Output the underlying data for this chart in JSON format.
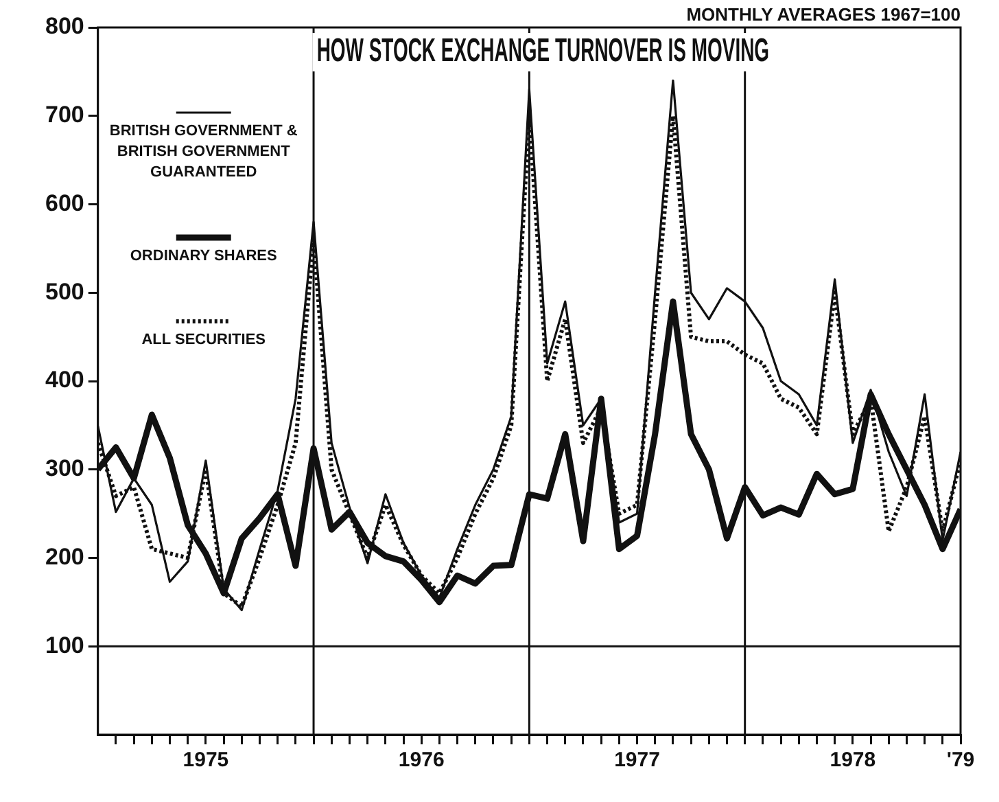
{
  "chart_data": {
    "type": "line",
    "title": "HOW STOCK EXCHANGE TURNOVER IS MOVING",
    "subtitle": "MONTHLY AVERAGES 1967=100",
    "x": [
      "1975-01",
      "1975-02",
      "1975-03",
      "1975-04",
      "1975-05",
      "1975-06",
      "1975-07",
      "1975-08",
      "1975-09",
      "1975-10",
      "1975-11",
      "1975-12",
      "1976-01",
      "1976-02",
      "1976-03",
      "1976-04",
      "1976-05",
      "1976-06",
      "1976-07",
      "1976-08",
      "1976-09",
      "1976-10",
      "1976-11",
      "1976-12",
      "1977-01",
      "1977-02",
      "1977-03",
      "1977-04",
      "1977-05",
      "1977-06",
      "1977-07",
      "1977-08",
      "1977-09",
      "1977-10",
      "1977-11",
      "1977-12",
      "1978-01",
      "1978-02",
      "1978-03",
      "1978-04",
      "1978-05",
      "1978-06",
      "1978-07",
      "1978-08",
      "1978-09",
      "1978-10",
      "1978-11",
      "1978-12",
      "1979-01"
    ],
    "series": [
      {
        "name": "BRITISH GOVERNMENT & BRITISH GOVERNMENT GUARANTEED",
        "color": "#111111",
        "line_style": "solid",
        "values": [
          349,
          252,
          290,
          260,
          173,
          196,
          310,
          165,
          141,
          210,
          276,
          380,
          580,
          330,
          257,
          194,
          272,
          217,
          180,
          155,
          210,
          260,
          300,
          360,
          730,
          420,
          490,
          350,
          380,
          240,
          250,
          500,
          740,
          500,
          470,
          505,
          490,
          460,
          400,
          385,
          350,
          515,
          330,
          390,
          320,
          270,
          385,
          220,
          320
        ]
      },
      {
        "name": "ORDINARY SHARES",
        "color": "#111111",
        "line_style": "solid",
        "values": [
          300,
          325,
          290,
          362,
          313,
          237,
          205,
          160,
          222,
          245,
          272,
          191,
          324,
          232,
          252,
          217,
          202,
          196,
          175,
          150,
          180,
          171,
          191,
          192,
          272,
          267,
          340,
          219,
          380,
          210,
          225,
          340,
          490,
          340,
          300,
          222,
          280,
          248,
          257,
          249,
          295,
          272,
          278,
          385,
          340,
          300,
          260,
          210,
          255
        ]
      },
      {
        "name": "ALL SECURITIES",
        "color": "#111111",
        "line_style": "dotted",
        "values": [
          330,
          270,
          280,
          210,
          205,
          200,
          300,
          160,
          145,
          200,
          260,
          330,
          560,
          300,
          250,
          200,
          260,
          215,
          180,
          160,
          200,
          250,
          290,
          350,
          700,
          400,
          470,
          330,
          370,
          250,
          260,
          470,
          700,
          450,
          445,
          445,
          430,
          420,
          380,
          370,
          340,
          500,
          340,
          380,
          230,
          280,
          360,
          230,
          310
        ]
      }
    ],
    "xlim": [
      "1975-01",
      "1979-01"
    ],
    "xticks": [
      {
        "value": "1975-02",
        "label": null
      },
      {
        "value": "1975-03",
        "label": null
      },
      {
        "value": "1975-04",
        "label": null
      },
      {
        "value": "1975-05",
        "label": null
      },
      {
        "value": "1975-06",
        "label": null
      },
      {
        "value": "1975-07",
        "label": "1975"
      },
      {
        "value": "1975-08",
        "label": null
      },
      {
        "value": "1975-09",
        "label": null
      },
      {
        "value": "1975-10",
        "label": null
      },
      {
        "value": "1975-11",
        "label": null
      },
      {
        "value": "1975-12",
        "label": null
      },
      {
        "value": "1976-01",
        "label": null
      },
      {
        "value": "1976-02",
        "label": null
      },
      {
        "value": "1976-03",
        "label": null
      },
      {
        "value": "1976-04",
        "label": null
      },
      {
        "value": "1976-05",
        "label": null
      },
      {
        "value": "1976-06",
        "label": null
      },
      {
        "value": "1976-07",
        "label": "1976"
      },
      {
        "value": "1976-08",
        "label": null
      },
      {
        "value": "1976-09",
        "label": null
      },
      {
        "value": "1976-10",
        "label": null
      },
      {
        "value": "1976-11",
        "label": null
      },
      {
        "value": "1976-12",
        "label": null
      },
      {
        "value": "1977-01",
        "label": null
      },
      {
        "value": "1977-02",
        "label": null
      },
      {
        "value": "1977-03",
        "label": null
      },
      {
        "value": "1977-04",
        "label": null
      },
      {
        "value": "1977-05",
        "label": null
      },
      {
        "value": "1977-06",
        "label": null
      },
      {
        "value": "1977-07",
        "label": "1977"
      },
      {
        "value": "1977-08",
        "label": null
      },
      {
        "value": "1977-09",
        "label": null
      },
      {
        "value": "1977-10",
        "label": null
      },
      {
        "value": "1977-11",
        "label": null
      },
      {
        "value": "1977-12",
        "label": null
      },
      {
        "value": "1978-01",
        "label": null
      },
      {
        "value": "1978-02",
        "label": null
      },
      {
        "value": "1978-03",
        "label": null
      },
      {
        "value": "1978-04",
        "label": null
      },
      {
        "value": "1978-05",
        "label": null
      },
      {
        "value": "1978-06",
        "label": null
      },
      {
        "value": "1978-07",
        "label": "1978"
      },
      {
        "value": "1978-08",
        "label": null
      },
      {
        "value": "1978-09",
        "label": null
      },
      {
        "value": "1978-10",
        "label": null
      },
      {
        "value": "1978-11",
        "label": null
      },
      {
        "value": "1978-12",
        "label": null
      },
      {
        "value": "1979-01",
        "label": "'79"
      }
    ],
    "ylim": [
      0,
      800
    ],
    "yticks": [
      100,
      200,
      300,
      400,
      500,
      600,
      700,
      800
    ],
    "ref_lines": [
      {
        "axis": "y",
        "value": 100,
        "label": null
      },
      {
        "axis": "x",
        "value": "1976-01",
        "label": null
      },
      {
        "axis": "x",
        "value": "1977-01",
        "label": null
      },
      {
        "axis": "x",
        "value": "1978-01",
        "label": null
      }
    ],
    "grid": false,
    "legend": "top left",
    "marker": "none"
  }
}
